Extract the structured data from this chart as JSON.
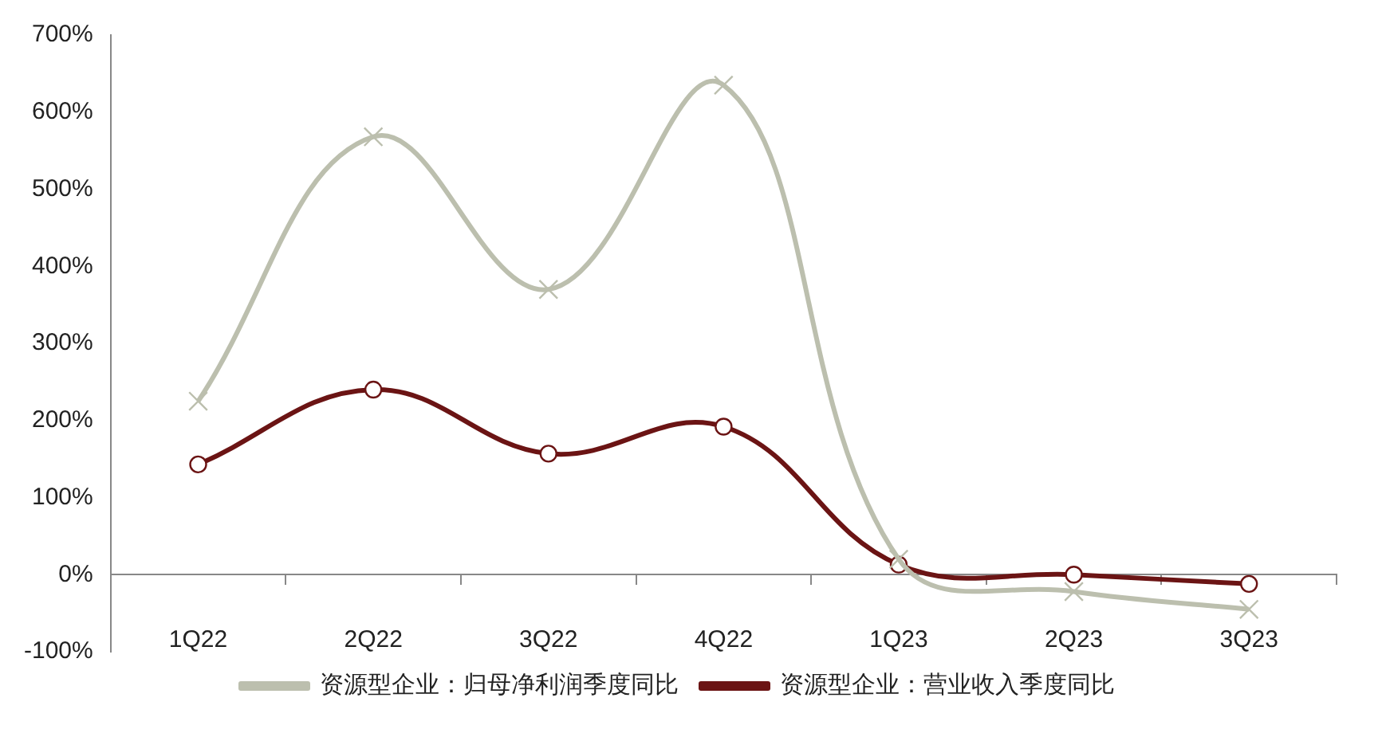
{
  "chart_data": {
    "type": "line",
    "categories": [
      "1Q22",
      "2Q22",
      "3Q22",
      "4Q22",
      "1Q23",
      "2Q23",
      "3Q23"
    ],
    "series": [
      {
        "name": "资源型企业：营业收入季度同比",
        "color": "#6b1414",
        "marker": "circle",
        "values": [
          143,
          240,
          157,
          192,
          13,
          0,
          -12
        ]
      },
      {
        "name": "资源型企业：归母净利润季度同比",
        "color": "#bcbfae",
        "marker": "cross",
        "values": [
          225,
          568,
          370,
          635,
          20,
          -22,
          -45
        ]
      }
    ],
    "ylim": [
      -100,
      700
    ],
    "yticks": [
      {
        "value": -100,
        "label": "-100%"
      },
      {
        "value": 0,
        "label": "0%"
      },
      {
        "value": 100,
        "label": "100%"
      },
      {
        "value": 200,
        "label": "200%"
      },
      {
        "value": 300,
        "label": "300%"
      },
      {
        "value": 400,
        "label": "400%"
      },
      {
        "value": 500,
        "label": "500%"
      },
      {
        "value": 600,
        "label": "600%"
      },
      {
        "value": 700,
        "label": "700%"
      }
    ],
    "grid": false,
    "legend": "bottom"
  }
}
